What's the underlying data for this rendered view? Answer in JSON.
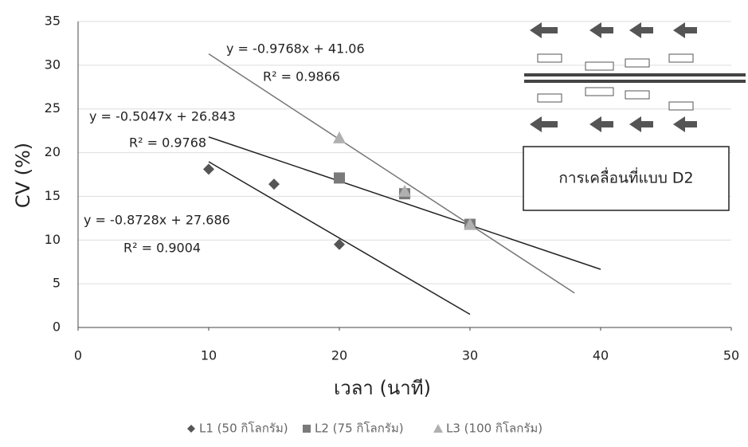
{
  "chart_data": {
    "type": "scatter",
    "x_label": "เวลา (นาที)",
    "y_label": "CV (%)",
    "xlim": [
      0,
      50
    ],
    "xticks": [
      0,
      10,
      20,
      30,
      40,
      50
    ],
    "ylim": [
      0,
      35
    ],
    "yticks": [
      0,
      5,
      10,
      15,
      20,
      25,
      30,
      35
    ],
    "grid": true,
    "legend": "bottom",
    "annotation": "การเคลื่อนที่แบบ D2",
    "series": [
      {
        "name": "L1 (50 กิโลกรัม)",
        "color": "#555555",
        "marker": "diamond",
        "x": [
          10,
          15,
          20
        ],
        "values": [
          18.1,
          16.4,
          9.5
        ],
        "trendline": {
          "equation": "y = -0.8728x + 27.686",
          "r2": "R² = 0.9004",
          "slope": -0.8728,
          "intercept": 27.686,
          "x_range": [
            10,
            30
          ],
          "color": "#222222"
        }
      },
      {
        "name": "L2 (75 กิโลกรัม)",
        "color": "#7a7a7a",
        "marker": "square",
        "x": [
          20,
          25,
          30
        ],
        "values": [
          17.1,
          15.3,
          11.8
        ],
        "trendline": {
          "equation": "y = -0.5047x + 26.843",
          "r2": "R² = 0.9768",
          "slope": -0.5047,
          "intercept": 26.843,
          "x_range": [
            10,
            40
          ],
          "color": "#222222"
        }
      },
      {
        "name": "L3 (100 กิโลกรัม)",
        "color": "#b0b0b0",
        "marker": "triangle",
        "x": [
          20,
          25,
          30
        ],
        "values": [
          21.7,
          15.6,
          11.8
        ],
        "trendline": {
          "equation": "y = -0.9768x + 41.06",
          "r2": "R² = 0.9866",
          "slope": -0.9768,
          "intercept": 41.06,
          "x_range": [
            10,
            38
          ],
          "color": "#777777"
        }
      }
    ]
  }
}
